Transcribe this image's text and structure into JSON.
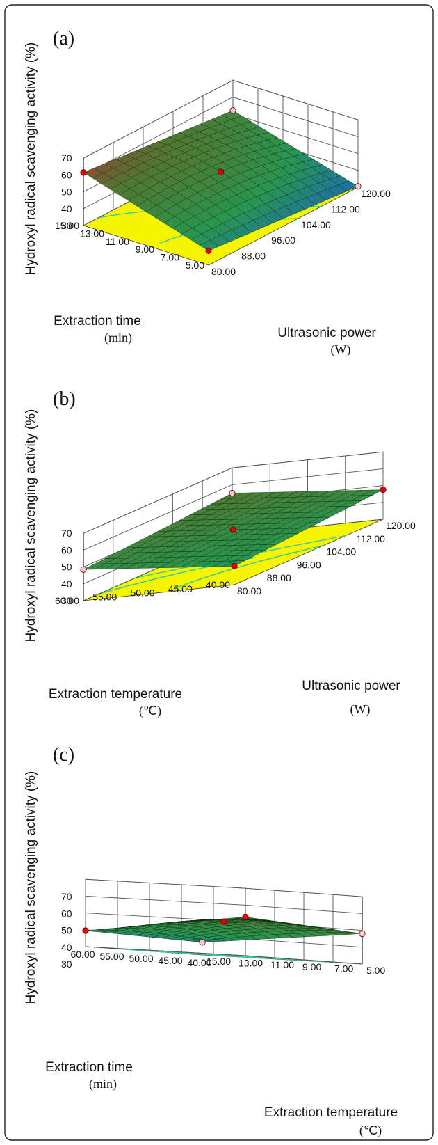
{
  "colors": {
    "floor": "#f5f500",
    "contour": "#36c8a0",
    "mesh": "#0a2a0a",
    "point_above": "#e00000",
    "point_below": "#f4c8c8"
  },
  "chart_data": [
    {
      "type": "surface3d",
      "panel_label": "(a)",
      "x": {
        "label": "Ultrasonic power",
        "unit": "(W)",
        "range": [
          80,
          120
        ],
        "ticks": [
          "80.00",
          "88.00",
          "96.00",
          "104.00",
          "112.00",
          "120.00"
        ]
      },
      "y": {
        "label": "Extraction time",
        "unit": "(min)",
        "range": [
          5,
          15
        ],
        "ticks": [
          "5.00",
          "7.00",
          "9.00",
          "11.00",
          "13.00",
          "15.00"
        ]
      },
      "z": {
        "label": "Hydroxyl radical scavenging activity (%)",
        "range": [
          30,
          70
        ],
        "ticks": [
          "30",
          "40",
          "50",
          "60",
          "70"
        ]
      },
      "corner_values": {
        "x_low_y_low": 38.5,
        "x_high_y_low": 30.5,
        "x_low_y_high": 61.5,
        "x_high_y_high": 52.0
      },
      "center_value": 50.5,
      "design_points": [
        {
          "x": 80,
          "y": 5,
          "z": 38.5,
          "above": true
        },
        {
          "x": 120,
          "y": 5,
          "z": 30.5,
          "above": false
        },
        {
          "x": 80,
          "y": 15,
          "z": 61.5,
          "above": true
        },
        {
          "x": 120,
          "y": 15,
          "z": 52.0,
          "above": false
        },
        {
          "x": 100,
          "y": 10,
          "z": 50.5,
          "above": true
        }
      ]
    },
    {
      "type": "surface3d",
      "panel_label": "(b)",
      "x": {
        "label": "Ultrasonic power",
        "unit": "(W)",
        "range": [
          80,
          120
        ],
        "ticks": [
          "80.00",
          "88.00",
          "96.00",
          "104.00",
          "112.00",
          "120.00"
        ]
      },
      "y": {
        "label": "Extraction temperature",
        "unit": "(℃)",
        "range": [
          40,
          60
        ],
        "ticks": [
          "40.00",
          "45.00",
          "50.00",
          "55.00",
          "60.00"
        ]
      },
      "z": {
        "label": "Hydroxyl radical scavenging activity (%)",
        "range": [
          30,
          70
        ],
        "ticks": [
          "30",
          "40",
          "50",
          "60",
          "70"
        ]
      },
      "corner_values": {
        "x_low_y_low": 41.0,
        "x_high_y_low": 47.5,
        "x_low_y_high": 48.5,
        "x_high_y_high": 55.0
      },
      "center_value": 48.0,
      "design_points": [
        {
          "x": 80,
          "y": 40,
          "z": 41.0,
          "above": true
        },
        {
          "x": 120,
          "y": 40,
          "z": 47.5,
          "above": true
        },
        {
          "x": 80,
          "y": 60,
          "z": 48.5,
          "above": false
        },
        {
          "x": 120,
          "y": 60,
          "z": 55.0,
          "above": false
        },
        {
          "x": 100,
          "y": 50,
          "z": 48.0,
          "above": true
        }
      ]
    },
    {
      "type": "surface3d",
      "panel_label": "(c)",
      "x": {
        "label": "Extraction temperature",
        "unit": "(℃)",
        "range": [
          40,
          60
        ],
        "ticks": [
          "40.00",
          "45.00",
          "50.00",
          "55.00",
          "60.00"
        ]
      },
      "y": {
        "label": "Extraction time",
        "unit": "(min)",
        "range": [
          5,
          15
        ],
        "ticks": [
          "15.00",
          "13.00",
          "11.00",
          "9.00",
          "7.00",
          "5.00"
        ]
      },
      "z": {
        "label": "Hydroxyl radical scavenging activity (%)",
        "range": [
          30,
          70
        ],
        "ticks": [
          "30",
          "40",
          "50",
          "60",
          "70"
        ]
      },
      "corner_values": {
        "x_low_y_low": 37.5,
        "x_high_y_low": 39.5,
        "x_low_y_high": 48.0,
        "x_high_y_high": 53.0
      },
      "center_value": 50.0,
      "design_points": [
        {
          "x": 40,
          "y": 15,
          "z": 37.5,
          "above": false
        },
        {
          "x": 60,
          "y": 15,
          "z": 39.5,
          "above": true
        },
        {
          "x": 40,
          "y": 5,
          "z": 48.0,
          "above": false
        },
        {
          "x": 60,
          "y": 5,
          "z": 53.0,
          "above": true
        },
        {
          "x": 50,
          "y": 10,
          "z": 50.0,
          "above": true
        }
      ]
    }
  ]
}
